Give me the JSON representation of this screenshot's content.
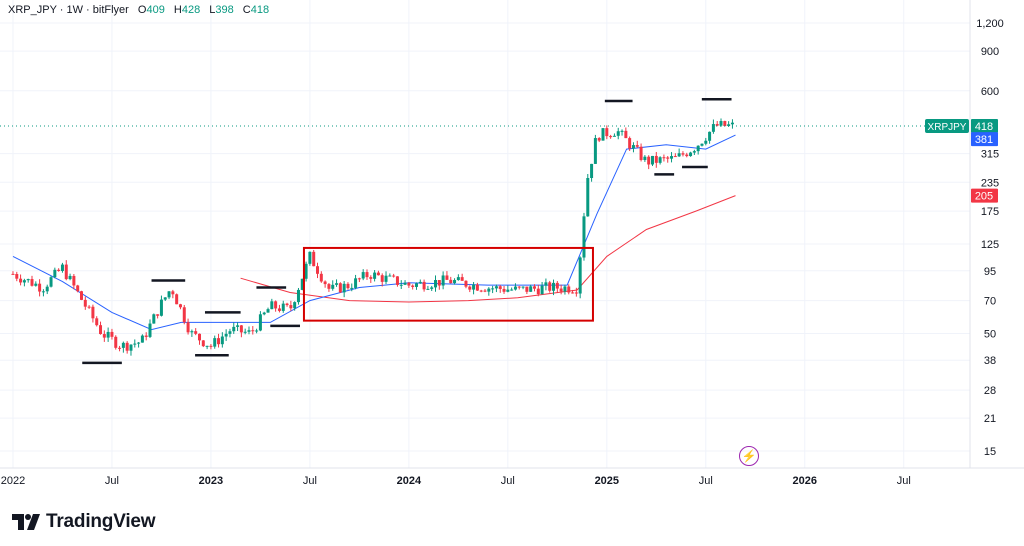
{
  "header": {
    "symbol": "XRP_JPY · 1W · bitFlyer",
    "open_label": "O",
    "open": "409",
    "high_label": "H",
    "high": "428",
    "low_label": "L",
    "low": "398",
    "close_label": "C",
    "close": "418"
  },
  "footer": {
    "brand": "TradingView"
  },
  "colors": {
    "up": "#089981",
    "down": "#f23645",
    "ma_fast": "#2962ff",
    "ma_slow": "#f23645",
    "box": "#d50000",
    "grid": "#f0f3fa",
    "text": "#131722",
    "marker": "#131722"
  },
  "chart_data": {
    "type": "candlestick",
    "title": "XRP_JPY · 1W · bitFlyer",
    "y_scale": "log",
    "ylim": [
      13,
      1400
    ],
    "y_ticks": [
      "15",
      "21",
      "28",
      "38",
      "50",
      "70",
      "95",
      "125",
      "175",
      "235",
      "315",
      "600",
      "900",
      "1,200"
    ],
    "x_labels": [
      "2022",
      "Jul",
      "2023",
      "Jul",
      "2024",
      "Jul",
      "2025",
      "Jul",
      "2026",
      "Jul"
    ],
    "x_bold": [
      "2023",
      "2024",
      "2025",
      "2026"
    ],
    "price_badges": [
      {
        "label": "XRPJPY",
        "value": "418",
        "color": "#089981"
      },
      {
        "value": "381",
        "color": "#2962ff"
      },
      {
        "value": "205",
        "color": "#f23645"
      }
    ],
    "last_price": 418,
    "candles_weekly_close_approx": [
      [
        2022.0,
        92
      ],
      [
        2022.15,
        80
      ],
      [
        2022.25,
        98
      ],
      [
        2022.35,
        70
      ],
      [
        2022.45,
        50
      ],
      [
        2022.55,
        44
      ],
      [
        2022.65,
        46
      ],
      [
        2022.75,
        68
      ],
      [
        2022.8,
        80
      ],
      [
        2022.9,
        50
      ],
      [
        2023.0,
        44
      ],
      [
        2023.1,
        52
      ],
      [
        2023.2,
        50
      ],
      [
        2023.3,
        66
      ],
      [
        2023.4,
        64
      ],
      [
        2023.5,
        110
      ],
      [
        2023.6,
        78
      ],
      [
        2023.7,
        82
      ],
      [
        2023.8,
        92
      ],
      [
        2024.0,
        82
      ],
      [
        2024.2,
        86
      ],
      [
        2024.4,
        80
      ],
      [
        2024.55,
        78
      ],
      [
        2024.7,
        80
      ],
      [
        2024.85,
        80
      ],
      [
        2024.9,
        240
      ],
      [
        2024.95,
        380
      ],
      [
        2025.05,
        400
      ],
      [
        2025.2,
        290
      ],
      [
        2025.35,
        300
      ],
      [
        2025.45,
        340
      ],
      [
        2025.55,
        420
      ],
      [
        2025.65,
        418
      ]
    ],
    "ma_fast": [
      [
        2022.0,
        110
      ],
      [
        2022.25,
        85
      ],
      [
        2022.5,
        62
      ],
      [
        2022.7,
        52
      ],
      [
        2022.85,
        56
      ],
      [
        2023.05,
        56
      ],
      [
        2023.3,
        56
      ],
      [
        2023.5,
        70
      ],
      [
        2023.75,
        80
      ],
      [
        2024.0,
        84
      ],
      [
        2024.4,
        82
      ],
      [
        2024.8,
        82
      ],
      [
        2024.95,
        170
      ],
      [
        2025.1,
        330
      ],
      [
        2025.3,
        345
      ],
      [
        2025.5,
        330
      ],
      [
        2025.65,
        381
      ]
    ],
    "ma_slow": [
      [
        2023.15,
        88
      ],
      [
        2023.4,
        76
      ],
      [
        2023.7,
        70
      ],
      [
        2024.0,
        69
      ],
      [
        2024.3,
        70
      ],
      [
        2024.55,
        72
      ],
      [
        2024.85,
        78
      ],
      [
        2025.0,
        110
      ],
      [
        2025.2,
        145
      ],
      [
        2025.45,
        175
      ],
      [
        2025.65,
        205
      ]
    ],
    "annotations": [
      {
        "type": "box",
        "x": [
          2023.47,
          2024.93
        ],
        "y": [
          57,
          120
        ],
        "color": "#d50000"
      },
      {
        "type": "level",
        "x": [
          2022.35,
          2022.55
        ],
        "y": 37
      },
      {
        "type": "level",
        "x": [
          2022.7,
          2022.87
        ],
        "y": 86
      },
      {
        "type": "level",
        "x": [
          2022.92,
          2023.09
        ],
        "y": 40
      },
      {
        "type": "level",
        "x": [
          2022.97,
          2023.15
        ],
        "y": 62
      },
      {
        "type": "level",
        "x": [
          2023.23,
          2023.38
        ],
        "y": 80
      },
      {
        "type": "level",
        "x": [
          2023.3,
          2023.45
        ],
        "y": 54
      },
      {
        "type": "level",
        "x": [
          2024.99,
          2025.13
        ],
        "y": 540
      },
      {
        "type": "level",
        "x": [
          2025.24,
          2025.34
        ],
        "y": 255
      },
      {
        "type": "level",
        "x": [
          2025.38,
          2025.51
        ],
        "y": 275
      },
      {
        "type": "level",
        "x": [
          2025.48,
          2025.63
        ],
        "y": 550
      }
    ]
  }
}
